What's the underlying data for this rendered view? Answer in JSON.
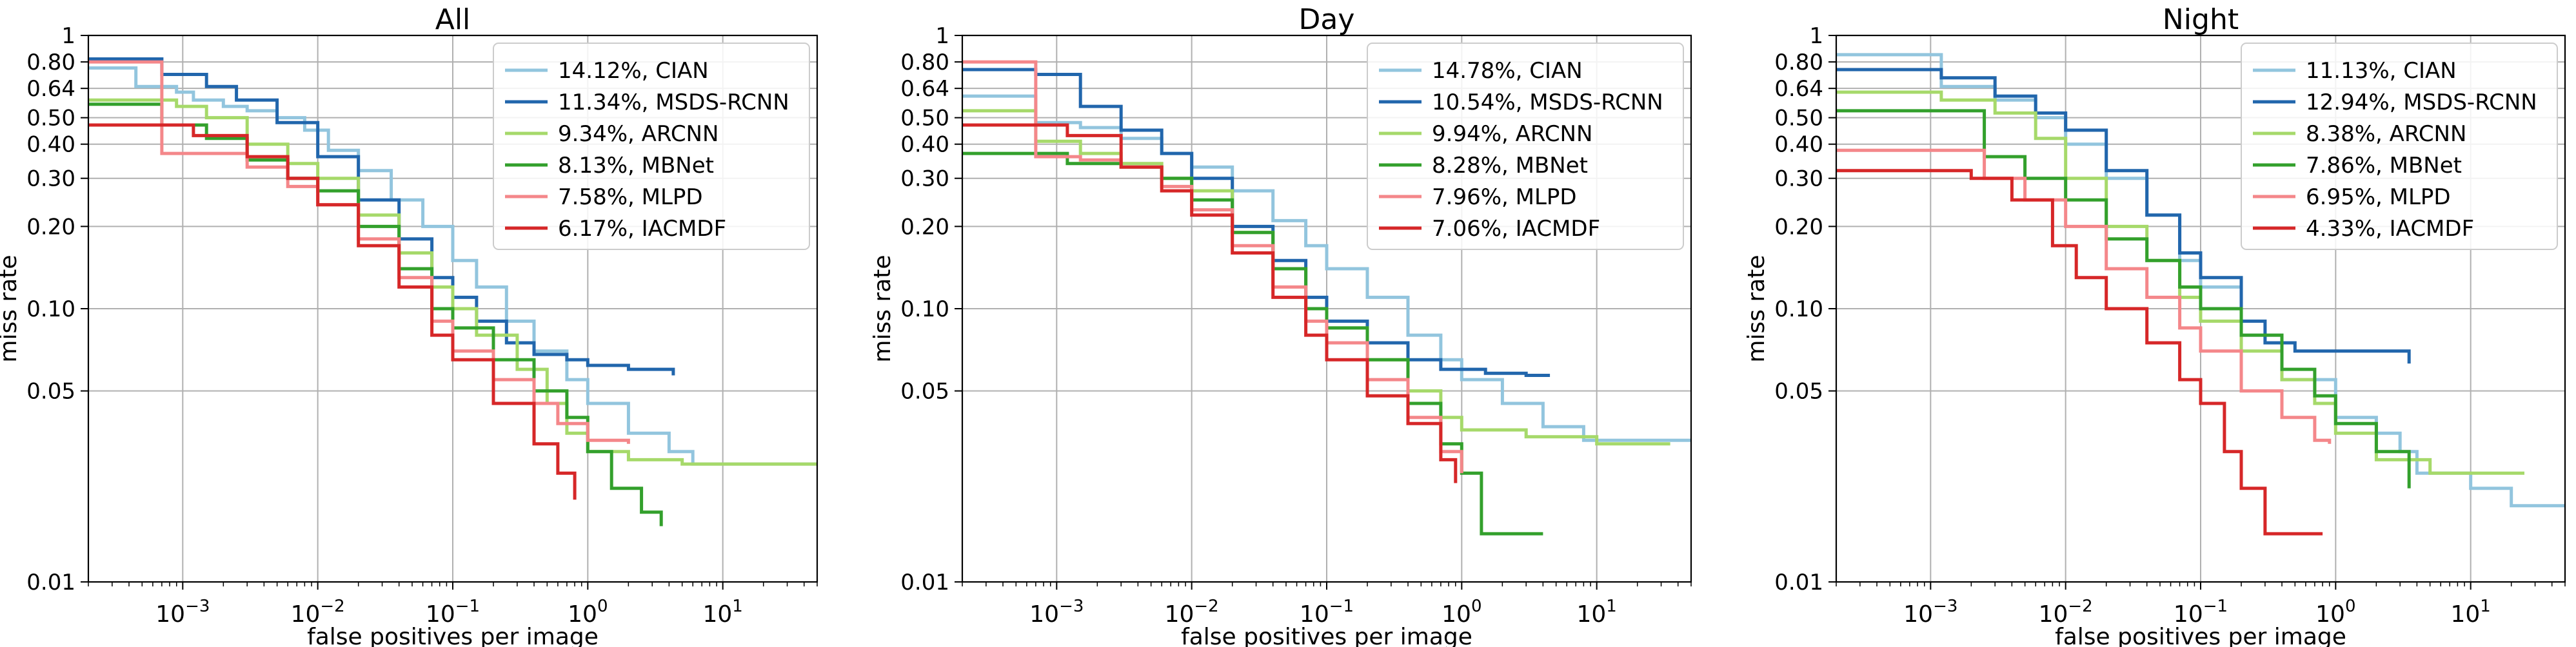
{
  "chart_data": [
    {
      "type": "line",
      "title": "All",
      "xlabel": "false positives per image",
      "ylabel": "miss rate",
      "xscale": "log",
      "yscale": "log",
      "xlim": [
        0.0002,
        50
      ],
      "ylim": [
        0.01,
        1
      ],
      "xtick_values": [
        0.001,
        0.01,
        0.1,
        1,
        10
      ],
      "xtick_labels": [
        [
          "10",
          "−3"
        ],
        [
          "10",
          "−2"
        ],
        [
          "10",
          "−1"
        ],
        [
          "10",
          "0"
        ],
        [
          "10",
          "1"
        ]
      ],
      "ytick_values": [
        0.01,
        0.05,
        0.1,
        0.2,
        0.3,
        0.4,
        0.5,
        0.64,
        0.8,
        1
      ],
      "ytick_labels": [
        "0.01",
        "0.05",
        "0.10",
        "0.20",
        "0.30",
        "0.40",
        "0.50",
        "0.64",
        "0.80",
        "1"
      ],
      "grid": true,
      "legend_position": "top-right",
      "series": [
        {
          "name": "14.12%, CIAN",
          "color": "#92c5de",
          "x": [
            0.0002,
            0.00045,
            0.00045,
            0.0009,
            0.0012,
            0.002,
            0.003,
            0.005,
            0.008,
            0.012,
            0.02,
            0.035,
            0.06,
            0.1,
            0.15,
            0.25,
            0.4,
            0.7,
            1.0,
            2.0,
            4.0,
            6.0,
            50
          ],
          "y": [
            0.76,
            0.76,
            0.65,
            0.62,
            0.58,
            0.55,
            0.53,
            0.5,
            0.45,
            0.38,
            0.32,
            0.25,
            0.2,
            0.15,
            0.12,
            0.09,
            0.07,
            0.055,
            0.045,
            0.035,
            0.03,
            0.027,
            0.027
          ]
        },
        {
          "name": "11.34%, MSDS-RCNN",
          "color": "#2166ac",
          "x": [
            0.0002,
            0.0007,
            0.0007,
            0.0015,
            0.0025,
            0.005,
            0.01,
            0.02,
            0.04,
            0.07,
            0.1,
            0.15,
            0.25,
            0.4,
            0.7,
            1.0,
            2.0,
            4.3,
            4.3
          ],
          "y": [
            0.82,
            0.82,
            0.72,
            0.65,
            0.58,
            0.48,
            0.36,
            0.25,
            0.18,
            0.13,
            0.11,
            0.09,
            0.075,
            0.068,
            0.065,
            0.062,
            0.06,
            0.06,
            0.057
          ]
        },
        {
          "name": "9.34%, ARCNN",
          "color": "#a6d96a",
          "x": [
            0.0002,
            0.0009,
            0.0015,
            0.003,
            0.006,
            0.01,
            0.02,
            0.04,
            0.07,
            0.1,
            0.15,
            0.3,
            0.5,
            0.7,
            1.0,
            2.0,
            5.0,
            50
          ],
          "y": [
            0.58,
            0.55,
            0.5,
            0.4,
            0.34,
            0.3,
            0.22,
            0.16,
            0.12,
            0.1,
            0.08,
            0.06,
            0.045,
            0.035,
            0.03,
            0.028,
            0.027,
            0.027
          ]
        },
        {
          "name": "8.13%, MBNet",
          "color": "#33a02c",
          "x": [
            0.0002,
            0.0007,
            0.0007,
            0.0015,
            0.003,
            0.006,
            0.01,
            0.02,
            0.04,
            0.07,
            0.1,
            0.2,
            0.4,
            0.7,
            1.0,
            1.5,
            2.5,
            3.5
          ],
          "y": [
            0.56,
            0.56,
            0.47,
            0.42,
            0.35,
            0.3,
            0.27,
            0.2,
            0.14,
            0.1,
            0.085,
            0.065,
            0.05,
            0.04,
            0.03,
            0.022,
            0.018,
            0.016
          ]
        },
        {
          "name": "7.58%, MLPD",
          "color": "#f4878a",
          "x": [
            0.0002,
            0.0007,
            0.0007,
            0.0015,
            0.003,
            0.006,
            0.01,
            0.02,
            0.04,
            0.07,
            0.1,
            0.2,
            0.4,
            0.6,
            1.0,
            2.0
          ],
          "y": [
            0.8,
            0.8,
            0.37,
            0.37,
            0.33,
            0.28,
            0.24,
            0.18,
            0.13,
            0.09,
            0.07,
            0.055,
            0.045,
            0.038,
            0.033,
            0.032
          ]
        },
        {
          "name": "6.17%, IACMDF",
          "color": "#d62728",
          "x": [
            0.0002,
            0.0012,
            0.0012,
            0.003,
            0.006,
            0.01,
            0.02,
            0.04,
            0.07,
            0.1,
            0.2,
            0.4,
            0.6,
            0.8
          ],
          "y": [
            0.47,
            0.47,
            0.43,
            0.36,
            0.3,
            0.24,
            0.17,
            0.12,
            0.08,
            0.065,
            0.045,
            0.032,
            0.025,
            0.02
          ]
        }
      ]
    },
    {
      "type": "line",
      "title": "Day",
      "xlabel": "false positives per image",
      "ylabel": "miss rate",
      "xscale": "log",
      "yscale": "log",
      "xlim": [
        0.0002,
        50
      ],
      "ylim": [
        0.01,
        1
      ],
      "xtick_values": [
        0.001,
        0.01,
        0.1,
        1,
        10
      ],
      "xtick_labels": [
        [
          "10",
          "−3"
        ],
        [
          "10",
          "−2"
        ],
        [
          "10",
          "−1"
        ],
        [
          "10",
          "0"
        ],
        [
          "10",
          "1"
        ]
      ],
      "ytick_values": [
        0.01,
        0.05,
        0.1,
        0.2,
        0.3,
        0.4,
        0.5,
        0.64,
        0.8,
        1
      ],
      "ytick_labels": [
        "0.01",
        "0.05",
        "0.10",
        "0.20",
        "0.30",
        "0.40",
        "0.50",
        "0.64",
        "0.80",
        "1"
      ],
      "grid": true,
      "legend_position": "top-right",
      "series": [
        {
          "name": "14.78%, CIAN",
          "color": "#92c5de",
          "x": [
            0.0002,
            0.0007,
            0.0007,
            0.0015,
            0.003,
            0.006,
            0.01,
            0.02,
            0.04,
            0.07,
            0.1,
            0.2,
            0.4,
            0.7,
            1.0,
            2.0,
            4.0,
            8.0,
            50
          ],
          "y": [
            0.6,
            0.6,
            0.48,
            0.46,
            0.42,
            0.37,
            0.33,
            0.27,
            0.21,
            0.17,
            0.14,
            0.11,
            0.08,
            0.065,
            0.055,
            0.045,
            0.037,
            0.033,
            0.033
          ]
        },
        {
          "name": "10.54%, MSDS-RCNN",
          "color": "#2166ac",
          "x": [
            0.0002,
            0.0007,
            0.0007,
            0.0015,
            0.003,
            0.006,
            0.01,
            0.02,
            0.04,
            0.07,
            0.1,
            0.2,
            0.4,
            0.7,
            1.5,
            3.0,
            4.5
          ],
          "y": [
            0.75,
            0.75,
            0.72,
            0.55,
            0.45,
            0.37,
            0.3,
            0.2,
            0.15,
            0.11,
            0.09,
            0.075,
            0.065,
            0.06,
            0.058,
            0.057,
            0.057
          ]
        },
        {
          "name": "9.94%, ARCNN",
          "color": "#a6d96a",
          "x": [
            0.0002,
            0.0007,
            0.0007,
            0.0015,
            0.003,
            0.006,
            0.01,
            0.02,
            0.04,
            0.07,
            0.1,
            0.2,
            0.4,
            0.7,
            1.0,
            3.0,
            10,
            35
          ],
          "y": [
            0.53,
            0.53,
            0.41,
            0.37,
            0.34,
            0.3,
            0.27,
            0.19,
            0.14,
            0.1,
            0.085,
            0.065,
            0.05,
            0.04,
            0.036,
            0.034,
            0.032,
            0.032
          ]
        },
        {
          "name": "8.28%, MBNet",
          "color": "#33a02c",
          "x": [
            0.0002,
            0.0012,
            0.0012,
            0.003,
            0.006,
            0.01,
            0.02,
            0.04,
            0.07,
            0.1,
            0.2,
            0.4,
            0.7,
            1.0,
            1.4,
            1.4,
            4.0
          ],
          "y": [
            0.37,
            0.37,
            0.34,
            0.33,
            0.3,
            0.25,
            0.19,
            0.14,
            0.1,
            0.085,
            0.065,
            0.045,
            0.032,
            0.025,
            0.02,
            0.015,
            0.015
          ]
        },
        {
          "name": "7.96%, MLPD",
          "color": "#f4878a",
          "x": [
            0.0002,
            0.0007,
            0.0007,
            0.0015,
            0.003,
            0.006,
            0.01,
            0.02,
            0.04,
            0.07,
            0.1,
            0.2,
            0.4,
            0.7,
            1.0
          ],
          "y": [
            0.8,
            0.8,
            0.36,
            0.35,
            0.33,
            0.28,
            0.23,
            0.17,
            0.12,
            0.09,
            0.075,
            0.055,
            0.04,
            0.03,
            0.025
          ]
        },
        {
          "name": "7.06%, IACMDF",
          "color": "#d62728",
          "x": [
            0.0002,
            0.0012,
            0.0012,
            0.003,
            0.006,
            0.01,
            0.02,
            0.04,
            0.07,
            0.1,
            0.2,
            0.4,
            0.7,
            0.9
          ],
          "y": [
            0.47,
            0.47,
            0.43,
            0.33,
            0.27,
            0.22,
            0.16,
            0.11,
            0.08,
            0.065,
            0.048,
            0.038,
            0.028,
            0.023
          ]
        }
      ]
    },
    {
      "type": "line",
      "title": "Night",
      "xlabel": "false positives per image",
      "ylabel": "miss rate",
      "xscale": "log",
      "yscale": "log",
      "xlim": [
        0.0002,
        50
      ],
      "ylim": [
        0.01,
        1
      ],
      "xtick_values": [
        0.001,
        0.01,
        0.1,
        1,
        10
      ],
      "xtick_labels": [
        [
          "10",
          "−3"
        ],
        [
          "10",
          "−2"
        ],
        [
          "10",
          "−1"
        ],
        [
          "10",
          "0"
        ],
        [
          "10",
          "1"
        ]
      ],
      "ytick_values": [
        0.01,
        0.05,
        0.1,
        0.2,
        0.3,
        0.4,
        0.5,
        0.64,
        0.8,
        1
      ],
      "ytick_labels": [
        "0.01",
        "0.05",
        "0.10",
        "0.20",
        "0.30",
        "0.40",
        "0.50",
        "0.64",
        "0.80",
        "1"
      ],
      "grid": true,
      "legend_position": "top-right",
      "series": [
        {
          "name": "11.13%, CIAN",
          "color": "#92c5de",
          "x": [
            0.0002,
            0.0012,
            0.0012,
            0.003,
            0.006,
            0.01,
            0.02,
            0.04,
            0.07,
            0.1,
            0.2,
            0.4,
            1.0,
            2.0,
            3.0,
            4.0,
            10,
            20,
            50
          ],
          "y": [
            0.85,
            0.85,
            0.65,
            0.58,
            0.5,
            0.4,
            0.3,
            0.22,
            0.15,
            0.12,
            0.08,
            0.055,
            0.04,
            0.035,
            0.03,
            0.025,
            0.022,
            0.019,
            0.019
          ]
        },
        {
          "name": "12.94%, MSDS-RCNN",
          "color": "#2166ac",
          "x": [
            0.0002,
            0.0012,
            0.0012,
            0.003,
            0.006,
            0.01,
            0.02,
            0.04,
            0.07,
            0.1,
            0.2,
            0.3,
            0.5,
            1.0,
            2.0,
            3.0,
            3.5,
            3.5
          ],
          "y": [
            0.75,
            0.75,
            0.7,
            0.6,
            0.52,
            0.45,
            0.32,
            0.22,
            0.16,
            0.13,
            0.09,
            0.075,
            0.07,
            0.07,
            0.07,
            0.07,
            0.065,
            0.063
          ]
        },
        {
          "name": "8.38%, ARCNN",
          "color": "#a6d96a",
          "x": [
            0.0002,
            0.0012,
            0.0012,
            0.003,
            0.006,
            0.01,
            0.02,
            0.04,
            0.07,
            0.1,
            0.2,
            0.4,
            0.7,
            1.0,
            2.0,
            5.0,
            25
          ],
          "y": [
            0.62,
            0.62,
            0.58,
            0.52,
            0.42,
            0.3,
            0.2,
            0.15,
            0.11,
            0.09,
            0.07,
            0.055,
            0.045,
            0.035,
            0.028,
            0.025,
            0.025
          ]
        },
        {
          "name": "7.86%, MBNet",
          "color": "#33a02c",
          "x": [
            0.0002,
            0.0025,
            0.0025,
            0.005,
            0.01,
            0.02,
            0.04,
            0.07,
            0.1,
            0.2,
            0.4,
            0.7,
            1.0,
            2.0,
            3.5
          ],
          "y": [
            0.53,
            0.53,
            0.36,
            0.3,
            0.25,
            0.18,
            0.15,
            0.12,
            0.1,
            0.08,
            0.06,
            0.048,
            0.038,
            0.03,
            0.022
          ]
        },
        {
          "name": "6.95%, MLPD",
          "color": "#f4878a",
          "x": [
            0.0002,
            0.0025,
            0.0025,
            0.005,
            0.01,
            0.02,
            0.04,
            0.07,
            0.1,
            0.2,
            0.4,
            0.7,
            0.9
          ],
          "y": [
            0.38,
            0.38,
            0.3,
            0.25,
            0.2,
            0.14,
            0.11,
            0.085,
            0.07,
            0.05,
            0.04,
            0.033,
            0.032
          ]
        },
        {
          "name": "4.33%, IACMDF",
          "color": "#d62728",
          "x": [
            0.0002,
            0.002,
            0.002,
            0.004,
            0.008,
            0.012,
            0.02,
            0.04,
            0.07,
            0.1,
            0.15,
            0.2,
            0.3,
            0.3,
            0.8
          ],
          "y": [
            0.32,
            0.32,
            0.3,
            0.25,
            0.17,
            0.13,
            0.1,
            0.075,
            0.055,
            0.045,
            0.03,
            0.022,
            0.018,
            0.015,
            0.015
          ]
        }
      ]
    }
  ]
}
